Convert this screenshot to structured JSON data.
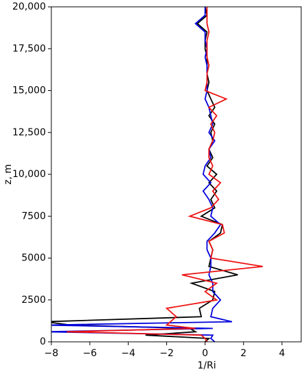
{
  "chart_data": {
    "type": "line",
    "xlabel": "1/Ri",
    "ylabel": "z, m",
    "xlim": [
      -8,
      5
    ],
    "ylim": [
      0,
      20000
    ],
    "xticks": [
      {
        "value": -8,
        "label": "−8"
      },
      {
        "value": -6,
        "label": "−6"
      },
      {
        "value": -4,
        "label": "−4"
      },
      {
        "value": -2,
        "label": "−2"
      },
      0,
      2,
      4
    ],
    "yticks": [
      0,
      2500,
      5000,
      7500,
      {
        "value": 10000,
        "label": "10,000"
      },
      {
        "value": 12500,
        "label": "12,500"
      },
      {
        "value": 15000,
        "label": "15,000"
      },
      {
        "value": 17500,
        "label": "17,500"
      },
      {
        "value": 20000,
        "label": "20,000"
      }
    ],
    "y": [
      0,
      200,
      400,
      600,
      800,
      1000,
      1200,
      1500,
      2000,
      2500,
      3000,
      3500,
      4000,
      4500,
      5000,
      5500,
      6000,
      6500,
      7000,
      7500,
      8000,
      8500,
      9000,
      9500,
      10000,
      10500,
      11000,
      11500,
      12000,
      12500,
      13000,
      13500,
      14000,
      14500,
      15000,
      15500,
      16000,
      16500,
      17000,
      17500,
      18000,
      18500,
      19000,
      19500,
      20000
    ],
    "series": [
      {
        "color": "#000000",
        "values": [
          0,
          0.2,
          -3.1,
          -0.5,
          -0.8,
          -7,
          -8.3,
          -0.2,
          -0.3,
          0.4,
          0.5,
          -0.7,
          1.7,
          0.2,
          0.3,
          0.4,
          0.2,
          0.8,
          0.9,
          -0.2,
          0.5,
          0.3,
          0.6,
          0.2,
          0.6,
          0.1,
          0.4,
          0.2,
          0.4,
          0.3,
          0.5,
          0.2,
          0.5,
          0.3,
          0.1,
          0.2,
          0.1,
          0.1,
          0.1,
          0,
          0,
          0.1,
          -0.4,
          0.1,
          0
        ]
      },
      {
        "color": "#0000dd",
        "values": [
          0.5,
          0.3,
          0.4,
          -8.3,
          0.4,
          -8.3,
          1.4,
          0.3,
          0.4,
          0.8,
          0.4,
          0.4,
          0.2,
          0.3,
          0.3,
          0.1,
          0.1,
          0.5,
          0.8,
          0.3,
          0.4,
          0.2,
          -0.1,
          0.3,
          -0.1,
          0,
          0.3,
          0.2,
          0.5,
          0.2,
          0.4,
          0.3,
          0.2,
          0,
          0.1,
          0.1,
          0.1,
          0.1,
          0,
          0.1,
          0,
          0,
          -0.5,
          0,
          0
        ]
      },
      {
        "color": "#ee1111",
        "values": [
          0.1,
          0,
          -0.2,
          -7.2,
          -0.5,
          -2,
          -1.8,
          -1.5,
          -2,
          0.6,
          0,
          0.6,
          -1.2,
          3,
          0.3,
          0.4,
          0.2,
          1,
          0.9,
          -0.8,
          0.3,
          0.7,
          0.4,
          0.8,
          0.2,
          0.4,
          0.2,
          0.2,
          0.4,
          0.5,
          0.3,
          0.6,
          0.2,
          1.1,
          0,
          0.1,
          0.1,
          0.2,
          0.1,
          0.1,
          0.1,
          0.2,
          0.1,
          0.1,
          0.1
        ]
      }
    ]
  }
}
